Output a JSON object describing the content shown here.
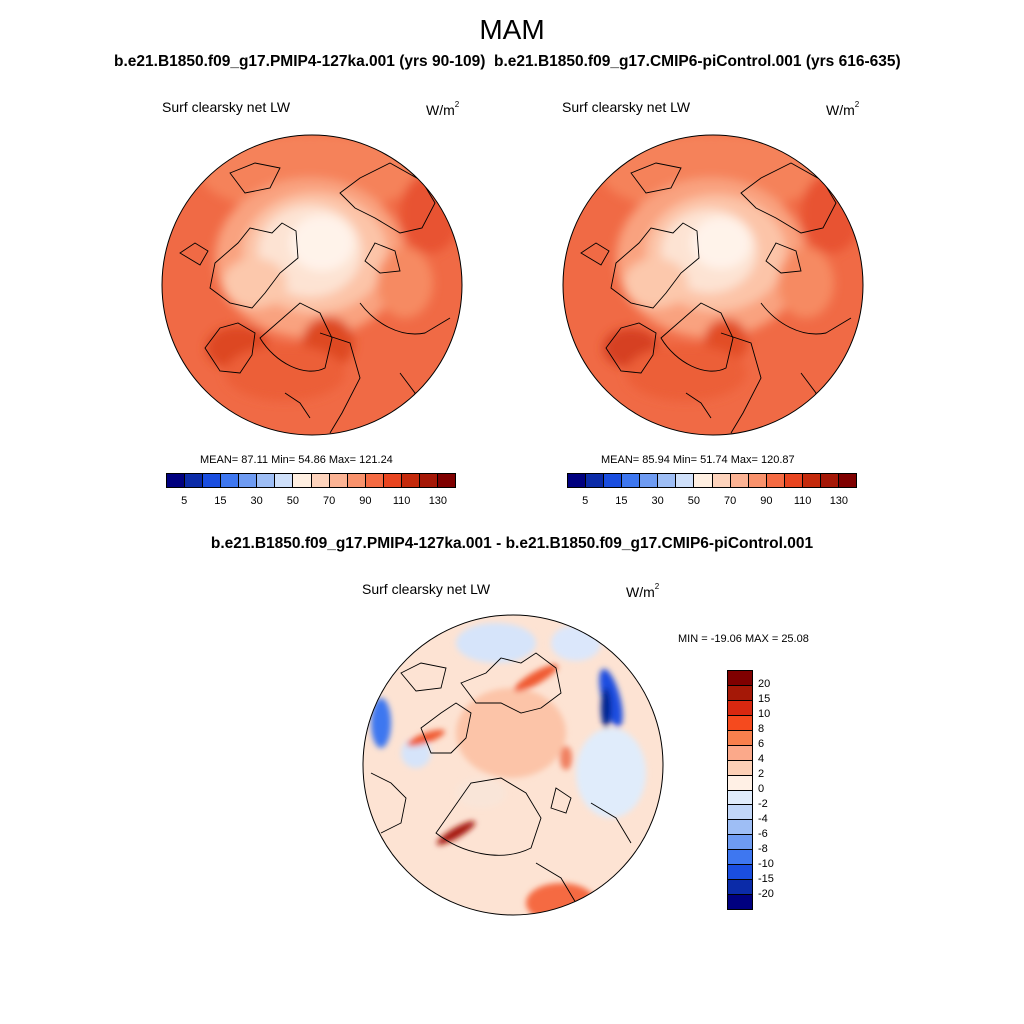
{
  "season": "MAM",
  "panels": [
    {
      "title": "b.e21.B1850.f09_g17.PMIP4-127ka.001 (yrs 90-109)",
      "variable": "Surf clearsky net LW",
      "units_base": "W/m",
      "units_exp": "2",
      "mean_label": "MEAN=",
      "mean": "87.11",
      "min_label": "Min=",
      "min": "54.86",
      "max_label": "Max=",
      "max": "121.24"
    },
    {
      "title": "b.e21.B1850.f09_g17.CMIP6-piControl.001 (yrs 616-635)",
      "variable": "Surf clearsky net LW",
      "units_base": "W/m",
      "units_exp": "2",
      "mean_label": "MEAN=",
      "mean": "85.94",
      "min_label": "Min=",
      "min": "51.74",
      "max_label": "Max=",
      "max": "120.87"
    }
  ],
  "diff": {
    "title": "b.e21.B1850.f09_g17.PMIP4-127ka.001 - b.e21.B1850.f09_g17.CMIP6-piControl.001",
    "variable": "Surf clearsky net LW",
    "units_base": "W/m",
    "units_exp": "2",
    "minmax": "MIN = -19.06 MAX =  25.08"
  },
  "colorbar_main": {
    "colors": [
      "#00007f",
      "#0b2ba8",
      "#1a4ee0",
      "#3e77f0",
      "#6e9bf2",
      "#9ebef5",
      "#cfe0fa",
      "#ffefe1",
      "#fdd3bc",
      "#fbb394",
      "#f9926c",
      "#f56b43",
      "#e84520",
      "#c42a0c",
      "#a51807",
      "#7f0000"
    ],
    "tick_labels": [
      "5",
      "15",
      "30",
      "50",
      "70",
      "90",
      "110",
      "130"
    ]
  },
  "colorbar_diff": {
    "colors": [
      "#7f0000",
      "#a51807",
      "#d82810",
      "#f54a1e",
      "#f8804d",
      "#fba98a",
      "#fdd0b6",
      "#fff0e5",
      "#e0ecfb",
      "#c1d6f8",
      "#9ebef5",
      "#6e9bf2",
      "#3e77f0",
      "#1a4ee0",
      "#0b2ba8",
      "#00007f"
    ],
    "tick_labels": [
      "20",
      "15",
      "10",
      "8",
      "6",
      "4",
      "2",
      "0",
      "-2",
      "-4",
      "-6",
      "-8",
      "-10",
      "-15",
      "-20"
    ]
  }
}
